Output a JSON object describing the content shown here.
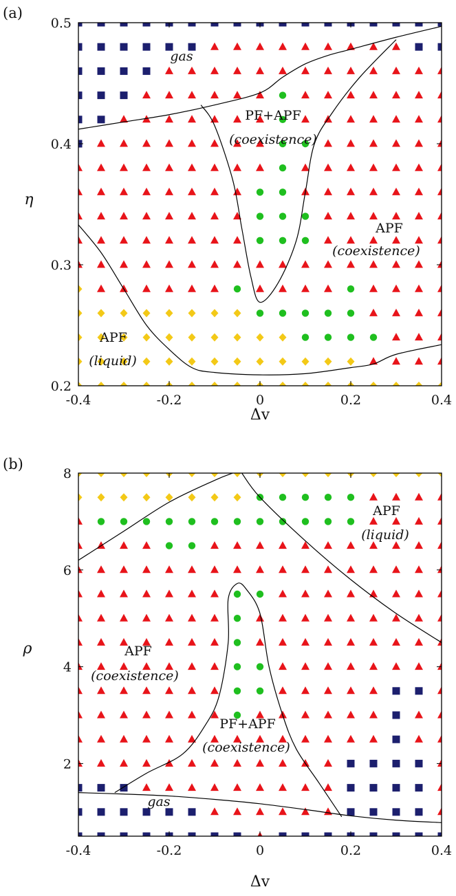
{
  "colors": {
    "triangle": "#e8141a",
    "square": "#1c1f6e",
    "diamond": "#f3c917",
    "circle": "#1fbf1f"
  },
  "chart_data": [
    {
      "type": "scatter",
      "panel_label": "(a)",
      "xlabel": "Δv",
      "ylabel": "η",
      "xlim": [
        -0.4,
        0.4
      ],
      "ylim": [
        0.2,
        0.5
      ],
      "xticks": [
        "-0.4",
        "-0.2",
        "0",
        "0.2",
        "0.4"
      ],
      "yticks": [
        "0.2",
        "0.3",
        "0.4",
        "0.5"
      ],
      "x_grid": [
        -0.4,
        -0.35,
        -0.3,
        -0.25,
        -0.2,
        -0.15,
        -0.1,
        -0.05,
        0,
        0.05,
        0.1,
        0.15,
        0.2,
        0.25,
        0.3,
        0.35,
        0.4
      ],
      "y_grid": [
        0.2,
        0.22,
        0.24,
        0.26,
        0.28,
        0.3,
        0.32,
        0.34,
        0.36,
        0.38,
        0.4,
        0.42,
        0.44,
        0.46,
        0.48,
        0.5
      ],
      "grid_rows": [
        "SSSSSSSSSSSSSSSSS",
        "SSSSSSTTTTTTTTTSS",
        "SSSSTTTTTTTTTTTTT",
        "SSSTTTTTTCTTTTTTT",
        "SSTTTTTTTCTTTTTTT",
        "STTTTTTTTCCTTTTTT",
        "TTTTTTTTTCTTTTTTT",
        "TTTTTTTTCCTTTTTTT",
        "TTTTTTTTCCCTTTTTT",
        "TTTTTTTTCCCTTTTTT",
        "TTTTTTTTTTTTTTTTT",
        "DTTTTTTCTTTTCTTTT",
        "DDDDDDDDCCCCCTTTT",
        "DDDDDDDDDDCCCCTTT",
        "DDDDDDDDDDDDDTTTT",
        "DDDDDDDDDDDDDDDDD"
      ],
      "regions": [
        {
          "text": "gas",
          "italic": true
        },
        {
          "text": "PF+APF",
          "italic": false
        },
        {
          "text": "(coexistence)",
          "italic": true
        },
        {
          "text": "APF",
          "italic": false
        },
        {
          "text": "(coexistence)",
          "italic": true
        },
        {
          "text": "APF",
          "italic": false
        },
        {
          "text": "(liquid)",
          "italic": true
        }
      ],
      "boundaries": {
        "gas_line": [
          [
            -0.4,
            0.412
          ],
          [
            -0.3,
            0.418
          ],
          [
            -0.2,
            0.424
          ],
          [
            -0.1,
            0.432
          ],
          [
            0,
            0.442
          ],
          [
            0.05,
            0.455
          ],
          [
            0.1,
            0.466
          ],
          [
            0.15,
            0.473
          ],
          [
            0.2,
            0.478
          ],
          [
            0.3,
            0.488
          ],
          [
            0.4,
            0.497
          ]
        ],
        "coexist_line": [
          [
            -0.13,
            0.432
          ],
          [
            -0.1,
            0.415
          ],
          [
            -0.06,
            0.37
          ],
          [
            -0.04,
            0.33
          ],
          [
            -0.02,
            0.29
          ],
          [
            0,
            0.269
          ],
          [
            0.04,
            0.285
          ],
          [
            0.08,
            0.32
          ],
          [
            0.1,
            0.36
          ],
          [
            0.12,
            0.4
          ],
          [
            0.16,
            0.426
          ],
          [
            0.22,
            0.455
          ],
          [
            0.3,
            0.486
          ]
        ],
        "liquid_line": [
          [
            -0.4,
            0.333
          ],
          [
            -0.35,
            0.31
          ],
          [
            -0.3,
            0.28
          ],
          [
            -0.25,
            0.25
          ],
          [
            -0.2,
            0.23
          ],
          [
            -0.15,
            0.215
          ],
          [
            -0.1,
            0.211
          ],
          [
            0,
            0.209
          ],
          [
            0.1,
            0.21
          ],
          [
            0.2,
            0.215
          ],
          [
            0.25,
            0.218
          ],
          [
            0.3,
            0.226
          ],
          [
            0.4,
            0.234
          ]
        ]
      }
    },
    {
      "type": "scatter",
      "panel_label": "(b)",
      "xlabel": "Δv",
      "ylabel": "ρ",
      "xlim": [
        -0.4,
        0.4
      ],
      "ylim": [
        0.5,
        8
      ],
      "xticks": [
        "-0.4",
        "-0.2",
        "0",
        "0.2",
        "0.4"
      ],
      "yticks": [
        "2",
        "4",
        "6",
        "8"
      ],
      "x_grid": [
        -0.4,
        -0.35,
        -0.3,
        -0.25,
        -0.2,
        -0.15,
        -0.1,
        -0.05,
        0,
        0.05,
        0.1,
        0.15,
        0.2,
        0.25,
        0.3,
        0.35,
        0.4
      ],
      "y_grid": [
        0.5,
        1,
        1.5,
        2,
        2.5,
        3,
        3.5,
        4,
        4.5,
        5,
        5.5,
        6,
        6.5,
        7,
        7.5,
        8
      ],
      "grid_rows": [
        "DDDDDDDDDDDDDDDDD",
        "DDDDDDDDCCCCCTTTT",
        "TCCCCCCCCCCCCTTTT",
        "TTTTCCTTTTTTTTTTT",
        "TTTTTTTTTTTTTTTTT",
        "TTTTTTTCCTTTTTTTT",
        "TTTTTTTCTTTTTTTTT",
        "TTTTTTTCTTTTTTTTT",
        "TTTTTTTCCTTTTTTTT",
        "TTTTTTTCCTTTTTSST",
        "TTTTTTTCTTTTTTSTT",
        "TTTTTTTTTTTTTTSTT",
        "TTTTTTTTTTTTSSSST",
        "SSSTTTTTTTTTSSSST",
        "SSSSSSTTTTTTSSSST",
        "SSSSSSSSTSSSSSSSS"
      ],
      "regions": [
        {
          "text": "APF",
          "italic": false
        },
        {
          "text": "(liquid)",
          "italic": true
        },
        {
          "text": "APF",
          "italic": false
        },
        {
          "text": "(coexistence)",
          "italic": true
        },
        {
          "text": "PF+APF",
          "italic": false
        },
        {
          "text": "(coexistence)",
          "italic": true
        },
        {
          "text": "gas",
          "italic": true
        }
      ],
      "boundaries": {
        "top_left_line": [
          [
            -0.4,
            6.2
          ],
          [
            -0.3,
            6.8
          ],
          [
            -0.2,
            7.4
          ],
          [
            -0.1,
            7.85
          ],
          [
            -0.06,
            8
          ]
        ],
        "top_right_line": [
          [
            -0.04,
            8
          ],
          [
            0,
            7.5
          ],
          [
            0.1,
            6.6
          ],
          [
            0.2,
            5.8
          ],
          [
            0.3,
            5.1
          ],
          [
            0.4,
            4.5
          ]
        ],
        "coexist_line": [
          [
            -0.32,
            1.4
          ],
          [
            -0.25,
            1.8
          ],
          [
            -0.17,
            2.2
          ],
          [
            -0.12,
            2.8
          ],
          [
            -0.09,
            3.4
          ],
          [
            -0.07,
            4.5
          ],
          [
            -0.07,
            5.4
          ],
          [
            -0.05,
            5.72
          ],
          [
            -0.03,
            5.6
          ],
          [
            0,
            5.1
          ],
          [
            0.02,
            4
          ],
          [
            0.05,
            3
          ],
          [
            0.08,
            2.3
          ],
          [
            0.13,
            1.6
          ],
          [
            0.18,
            0.9
          ]
        ],
        "gas_line": [
          [
            -0.4,
            1.4
          ],
          [
            -0.3,
            1.37
          ],
          [
            -0.2,
            1.33
          ],
          [
            -0.1,
            1.26
          ],
          [
            0,
            1.17
          ],
          [
            0.1,
            1.05
          ],
          [
            0.2,
            0.92
          ],
          [
            0.3,
            0.83
          ],
          [
            0.4,
            0.78
          ]
        ]
      }
    }
  ]
}
